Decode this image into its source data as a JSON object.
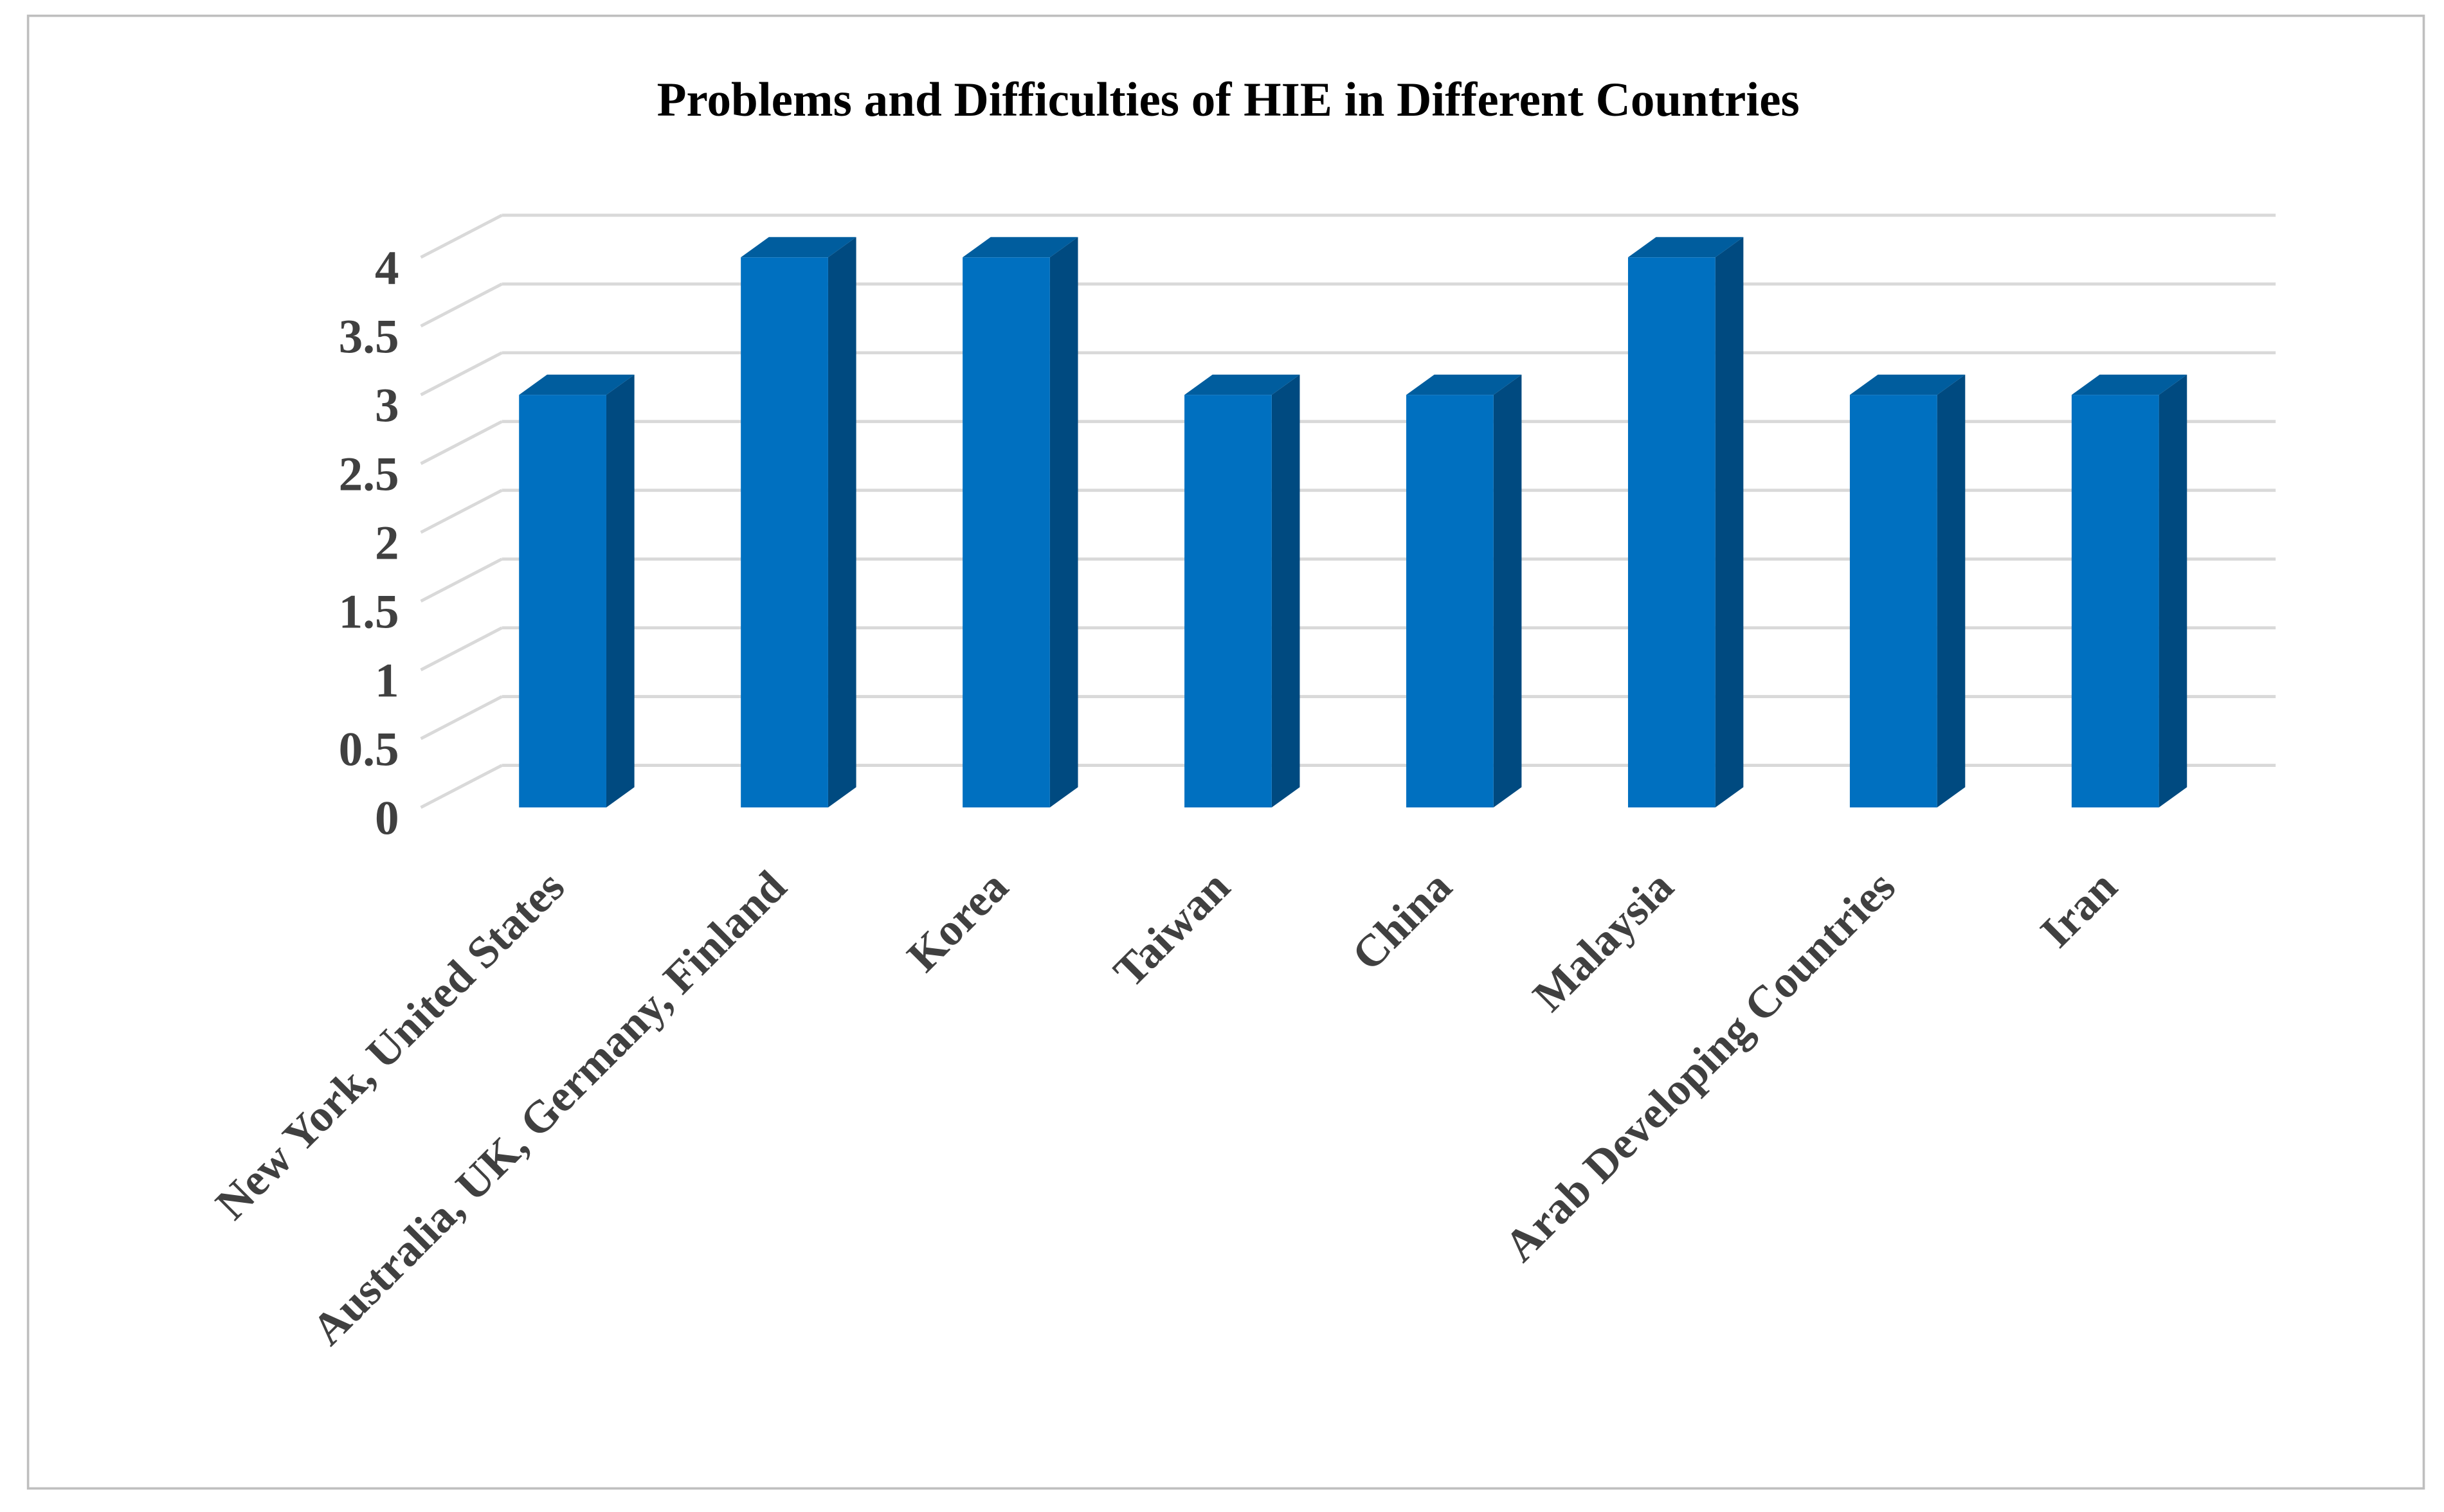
{
  "chart_data": {
    "type": "bar3d",
    "title": "Problems and Difficulties of HIE in Different Countries",
    "categories": [
      "New York, United States",
      "Australia, UK, Germany, Finland",
      "Korea",
      "Taiwan",
      "China",
      "Malaysia",
      "Arab Developing Countries",
      "Iran"
    ],
    "values": [
      3,
      4,
      4,
      3,
      3,
      4,
      3,
      3
    ],
    "color": "#0070c0",
    "ylim": [
      0,
      4
    ],
    "yticks": [
      0,
      0.5,
      1,
      1.5,
      2,
      2.5,
      3,
      3.5,
      4
    ],
    "grid": true
  }
}
